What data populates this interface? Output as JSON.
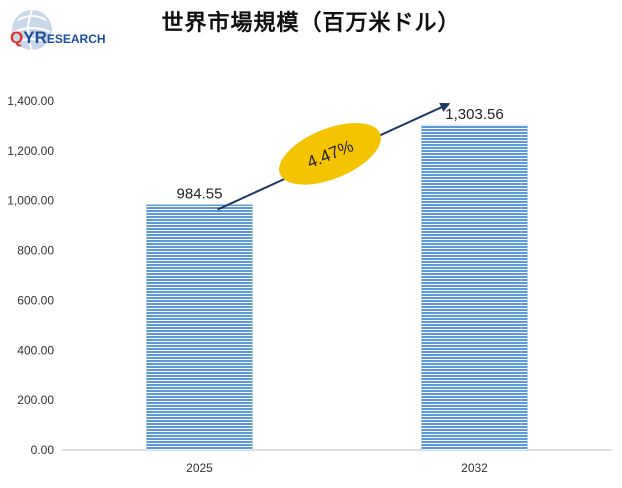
{
  "logo": {
    "text_q": "Q",
    "text_y": "Y",
    "text_r": "R",
    "text_rest": "ESEARCH"
  },
  "chart_data": {
    "type": "bar",
    "title": "世界市場規模（百万米ドル）",
    "categories": [
      "2025",
      "2032"
    ],
    "values": [
      984.55,
      1303.56
    ],
    "value_labels": [
      "984.55",
      "1,303.56"
    ],
    "ylim": [
      0,
      1400
    ],
    "yticks": [
      0,
      200,
      400,
      600,
      800,
      1000,
      1200,
      1400
    ],
    "ytick_labels": [
      "0.00",
      "200.00",
      "400.00",
      "600.00",
      "800.00",
      "1,000.00",
      "1,200.00",
      "1,400.00"
    ],
    "grid": false,
    "bar_color": "#5b9bd5",
    "annotation": {
      "text": "4.47%",
      "color": "#f5c400",
      "arrow_color": "#1f3864"
    }
  }
}
